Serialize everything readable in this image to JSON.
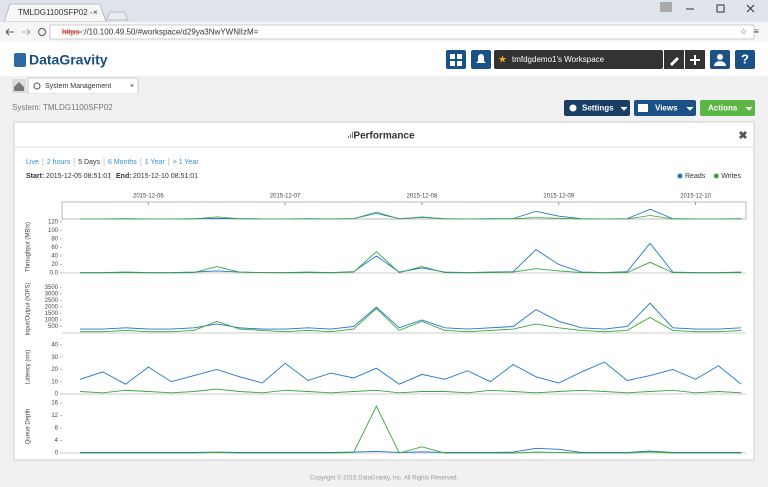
{
  "browser": {
    "tab_title": "TMLDG1100SFP02 -",
    "url_scheme": "https",
    "url_rest": "://10.100.49.50/#workspace/d29ya3NwYWNlIzM="
  },
  "header": {
    "logo": "DataGravity",
    "workspace": "tmfdgdemo1's Workspace",
    "help": "?"
  },
  "tabs": [
    "System Management"
  ],
  "system_label": "System: TMLDG1100SFP02",
  "buttons": [
    "Settings",
    "Views",
    "Actions"
  ],
  "panel": {
    "title": "Performance",
    "ranges": [
      "Live",
      "2 hours",
      "5 Days",
      "6 Months",
      "1 Year",
      "> 1 Year"
    ],
    "start_label": "Start:",
    "end_label": "End:"
  },
  "chart_data": {
    "type": "line",
    "xlim": [
      "2015-12-05 08:51:01",
      "2015-12-10 08:51:01"
    ],
    "xticks": [
      "2015-12-06",
      "2015-12-07",
      "2015-12-08",
      "2015-12-09",
      "2015-12-10"
    ],
    "x": [
      "2015-12-05 12:00",
      "2015-12-05 16:00",
      "2015-12-05 20:00",
      "2015-12-06 00:00",
      "2015-12-06 04:00",
      "2015-12-06 08:00",
      "2015-12-06 12:00",
      "2015-12-06 16:00",
      "2015-12-06 20:00",
      "2015-12-07 00:00",
      "2015-12-07 04:00",
      "2015-12-07 08:00",
      "2015-12-07 12:00",
      "2015-12-07 16:00",
      "2015-12-07 20:00",
      "2015-12-08 00:00",
      "2015-12-08 04:00",
      "2015-12-08 08:00",
      "2015-12-08 12:00",
      "2015-12-08 16:00",
      "2015-12-08 20:00",
      "2015-12-09 00:00",
      "2015-12-09 04:00",
      "2015-12-09 08:00",
      "2015-12-09 12:00",
      "2015-12-09 16:00",
      "2015-12-09 20:00",
      "2015-12-10 00:00",
      "2015-12-10 04:00",
      "2015-12-10 08:00"
    ],
    "series": [
      {
        "name": "Reads",
        "color": "#1f77c8"
      },
      {
        "name": "Writes",
        "color": "#3aa63a"
      }
    ],
    "panels": [
      {
        "ylabel": "Throughput (MB/s)",
        "ylim": [
          0,
          122
        ],
        "yticks": [
          {
            "value": 0,
            "label": "0.0"
          },
          20,
          40,
          60,
          80,
          100,
          120
        ],
        "values": [
          [
            1,
            1,
            2,
            1,
            1,
            2,
            5,
            2,
            1,
            1,
            2,
            1,
            3,
            40,
            2,
            12,
            2,
            1,
            2,
            3,
            55,
            20,
            2,
            1,
            3,
            70,
            2,
            1,
            1,
            2
          ],
          [
            0.5,
            0.5,
            1,
            0.5,
            0.5,
            1,
            15,
            2,
            1,
            0.5,
            1,
            0.5,
            2,
            50,
            1,
            15,
            1,
            0.5,
            1,
            2,
            10,
            5,
            1,
            0.5,
            1,
            25,
            1,
            0.5,
            0.5,
            1
          ]
        ]
      },
      {
        "ylabel": "Input/Output (IOPS)",
        "ylim": [
          0,
          3700
        ],
        "yticks": [
          500,
          1000,
          1500,
          2000,
          2500,
          3000,
          3500
        ],
        "values": [
          [
            300,
            300,
            400,
            300,
            300,
            400,
            700,
            400,
            300,
            300,
            400,
            300,
            500,
            2000,
            400,
            1000,
            400,
            300,
            400,
            500,
            1800,
            900,
            400,
            300,
            500,
            2300,
            400,
            300,
            300,
            400
          ],
          [
            100,
            100,
            200,
            100,
            100,
            200,
            900,
            300,
            200,
            100,
            200,
            100,
            300,
            1900,
            200,
            900,
            200,
            100,
            200,
            300,
            700,
            400,
            200,
            100,
            200,
            1200,
            200,
            100,
            100,
            200
          ]
        ]
      },
      {
        "ylabel": "Latency (ms)",
        "ylim": [
          0,
          44
        ],
        "yticks": [
          0,
          10,
          20,
          30,
          40
        ],
        "values": [
          [
            12,
            18,
            8,
            22,
            10,
            15,
            20,
            14,
            9,
            25,
            11,
            17,
            13,
            21,
            8,
            16,
            12,
            19,
            10,
            24,
            14,
            9,
            18,
            26,
            11,
            15,
            20,
            12,
            23,
            8
          ],
          [
            2,
            1,
            3,
            2,
            1,
            2,
            4,
            2,
            1,
            3,
            2,
            1,
            2,
            3,
            1,
            2,
            2,
            1,
            3,
            2,
            1,
            2,
            3,
            2,
            1,
            2,
            3,
            1,
            2,
            1
          ]
        ]
      },
      {
        "ylabel": "Queue Depth",
        "ylim": [
          0,
          17
        ],
        "yticks": [
          0,
          4,
          8,
          12,
          16
        ],
        "values": [
          [
            0.2,
            0.2,
            0.2,
            0.2,
            0.2,
            0.2,
            0.3,
            0.2,
            0.2,
            0.2,
            0.2,
            0.2,
            0.3,
            0.5,
            0.2,
            0.4,
            0.2,
            0.2,
            0.2,
            0.3,
            1.5,
            1.2,
            0.2,
            0.2,
            0.2,
            0.6,
            0.2,
            0.2,
            0.2,
            0.2
          ],
          [
            0,
            0,
            0,
            0,
            0,
            0,
            0.2,
            0,
            0,
            0,
            0,
            0,
            0.2,
            15,
            0,
            2,
            0,
            0,
            0,
            0,
            0.3,
            0.2,
            0,
            0,
            0,
            0.4,
            0,
            0,
            0,
            0
          ]
        ]
      }
    ]
  },
  "footer": "Copyright © 2015 DataGravity, Inc. All Rights Reserved."
}
